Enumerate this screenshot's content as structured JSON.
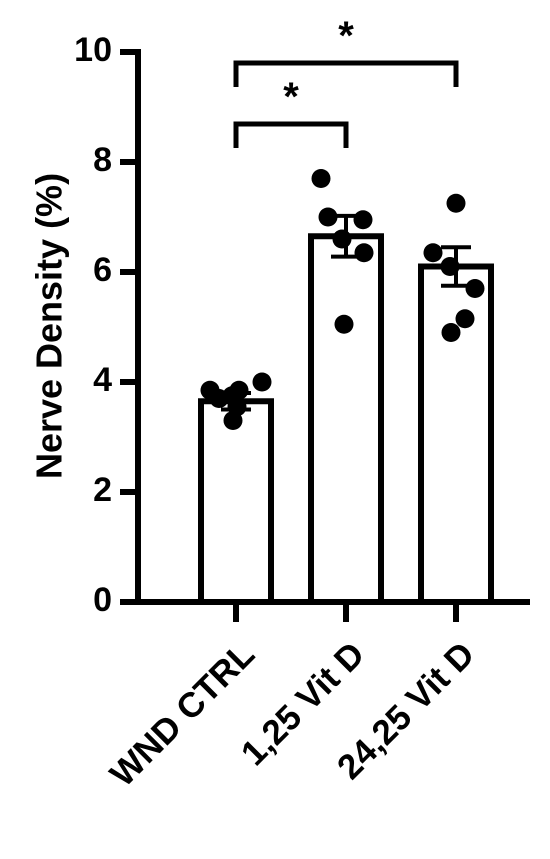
{
  "chart_data": {
    "type": "bar",
    "ylabel": "Nerve Density (%)",
    "xlabel": "",
    "ylim": [
      0,
      10
    ],
    "yticks": [
      0,
      2,
      4,
      6,
      8,
      10
    ],
    "grid": false,
    "categories": [
      "WND CTRL",
      "1,25 Vit D",
      "24,25 Vit D"
    ],
    "values": [
      3.65,
      6.65,
      6.1
    ],
    "sem": [
      0.15,
      0.37,
      0.35
    ],
    "points": [
      [
        3.75,
        3.7,
        3.55,
        3.85,
        3.85,
        4.0,
        3.3
      ],
      [
        7.7,
        7.0,
        6.95,
        6.35,
        6.6,
        5.05
      ],
      [
        7.25,
        6.35,
        6.1,
        5.7,
        5.15,
        4.9
      ]
    ],
    "significance": [
      {
        "from": 0,
        "to": 1,
        "label": "*"
      },
      {
        "from": 0,
        "to": 2,
        "label": "*"
      }
    ]
  }
}
